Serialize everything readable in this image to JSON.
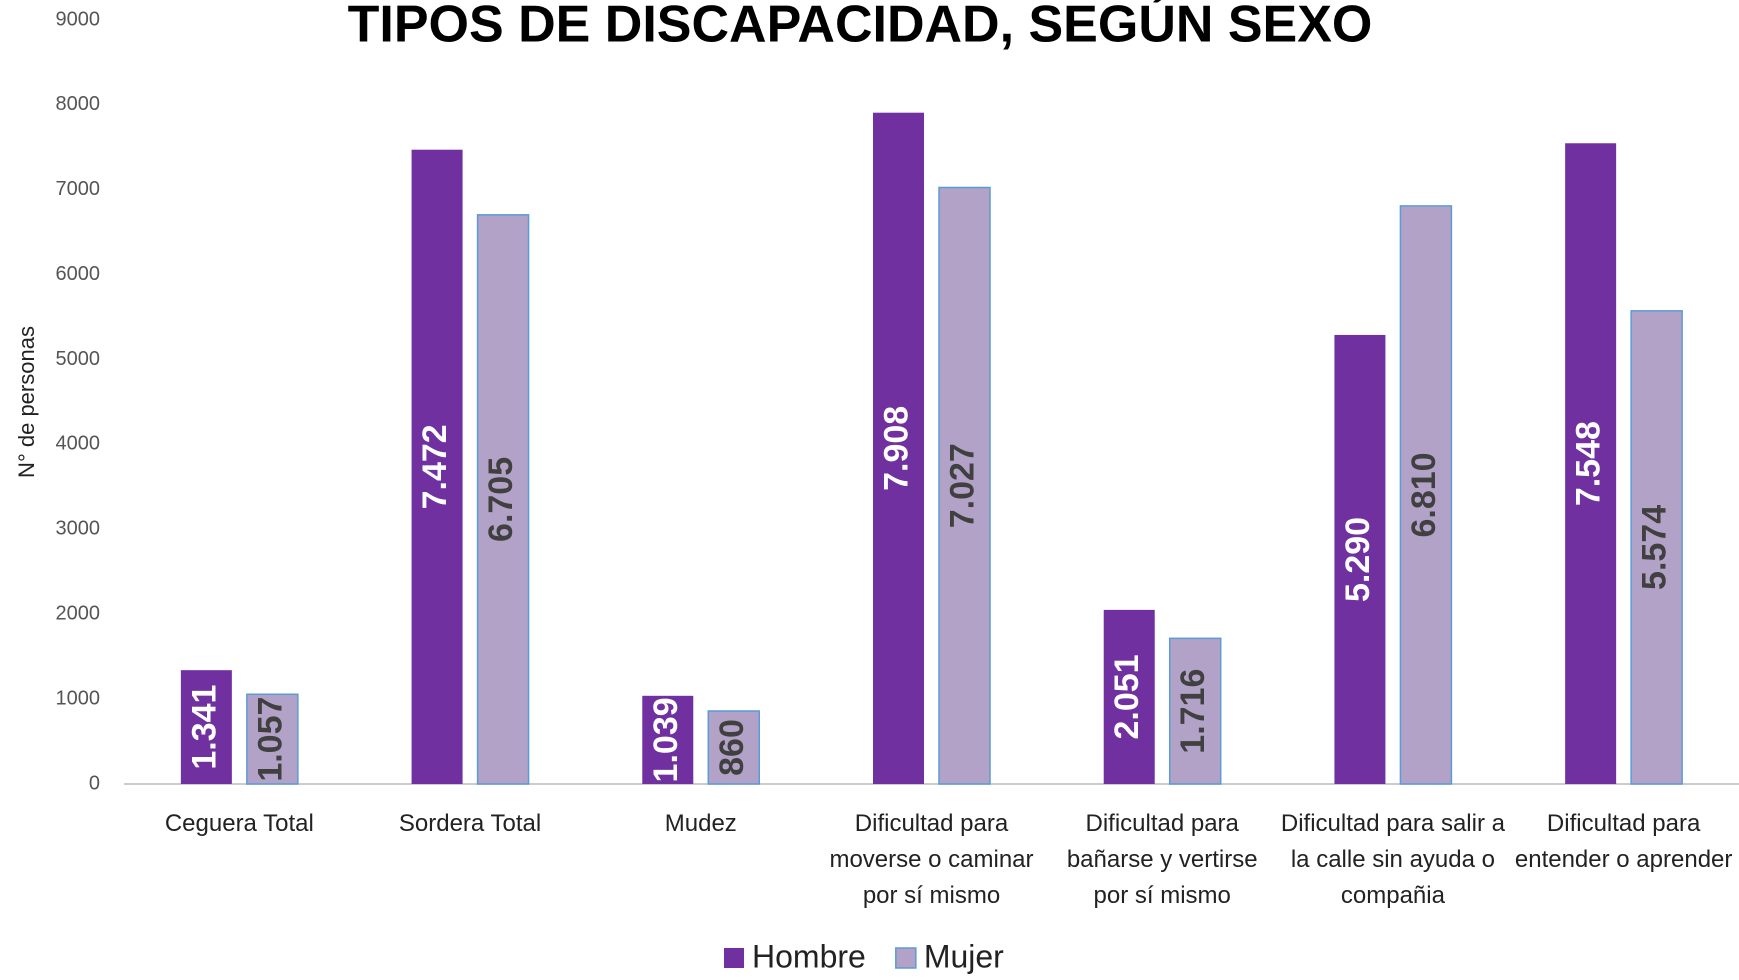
{
  "chart_data": {
    "type": "bar",
    "title": "TIPOS DE DISCAPACIDAD, SEGÚN SEXO",
    "y_label": "N° de personas",
    "categories": [
      "Ceguera Total",
      "Sordera Total",
      "Mudez",
      "Dificultad para moverse o caminar por sí mismo",
      "Dificultad para bañarse y vertirse por sí mismo",
      "Dificultad para salir a la calle sin ayuda o compañia",
      "Dificultad para entender o aprender"
    ],
    "series": [
      {
        "name": "Hombre",
        "color": "#7030a0",
        "values": [
          1341,
          7472,
          1039,
          7908,
          2051,
          5290,
          7548
        ],
        "value_labels": [
          "1.341",
          "7.472",
          "1.039",
          "7.908",
          "2.051",
          "5.290",
          "7.548"
        ]
      },
      {
        "name": "Mujer",
        "color": "#b3a2c7",
        "values": [
          1057,
          6705,
          860,
          7027,
          1716,
          6810,
          5574
        ],
        "value_labels": [
          "1.057",
          "6.705",
          "860",
          "7.027",
          "1.716",
          "6.810",
          "5.574"
        ]
      }
    ],
    "ylim": [
      0,
      9000
    ],
    "yticks": [
      0,
      1000,
      2000,
      3000,
      4000,
      5000,
      6000,
      7000,
      8000,
      9000
    ],
    "grid": false,
    "legend": "bottom"
  }
}
